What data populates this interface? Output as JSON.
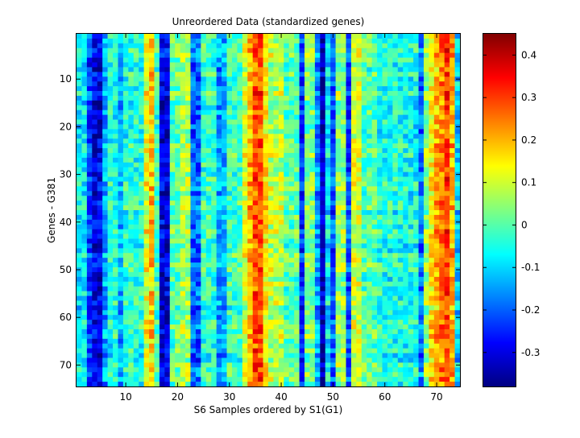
{
  "chart_data": {
    "type": "heatmap",
    "title": "Unreordered Data (standardized genes)",
    "xlabel": "S6 Samples ordered by S1(G1)",
    "ylabel": "Genes - G381",
    "x_range": [
      1,
      74
    ],
    "y_range": [
      1,
      74
    ],
    "y_reversed": true,
    "x_ticks": [
      10,
      20,
      30,
      40,
      50,
      60,
      70
    ],
    "y_ticks": [
      10,
      20,
      30,
      40,
      50,
      60,
      70
    ],
    "colormap": "jet",
    "colorbar": {
      "range": [
        -0.38,
        0.45
      ],
      "ticks": [
        -0.3,
        -0.2,
        -0.1,
        0,
        0.1,
        0.2,
        0.3,
        0.4
      ]
    },
    "column_profile": [
      {
        "cols": [
          1,
          2
        ],
        "value": -0.08
      },
      {
        "cols": [
          3,
          3
        ],
        "value": -0.22
      },
      {
        "cols": [
          4,
          5
        ],
        "value": -0.3
      },
      {
        "cols": [
          6,
          6
        ],
        "value": -0.15
      },
      {
        "cols": [
          7,
          8
        ],
        "value": -0.05
      },
      {
        "cols": [
          9,
          9
        ],
        "value": -0.14
      },
      {
        "cols": [
          10,
          13
        ],
        "value": -0.04
      },
      {
        "cols": [
          14,
          14
        ],
        "value": 0.12
      },
      {
        "cols": [
          15,
          15
        ],
        "value": 0.18
      },
      {
        "cols": [
          16,
          16
        ],
        "value": -0.02
      },
      {
        "cols": [
          17,
          18
        ],
        "value": -0.3
      },
      {
        "cols": [
          19,
          20
        ],
        "value": 0.0
      },
      {
        "cols": [
          21,
          22
        ],
        "value": 0.06
      },
      {
        "cols": [
          23,
          24
        ],
        "value": -0.2
      },
      {
        "cols": [
          25,
          27
        ],
        "value": -0.03
      },
      {
        "cols": [
          28,
          29
        ],
        "value": -0.15
      },
      {
        "cols": [
          30,
          32
        ],
        "value": -0.02
      },
      {
        "cols": [
          33,
          33
        ],
        "value": 0.1
      },
      {
        "cols": [
          34,
          34
        ],
        "value": 0.2
      },
      {
        "cols": [
          35,
          36
        ],
        "value": 0.28
      },
      {
        "cols": [
          37,
          37
        ],
        "value": 0.16
      },
      {
        "cols": [
          38,
          40
        ],
        "value": 0.08
      },
      {
        "cols": [
          41,
          43
        ],
        "value": 0.0
      },
      {
        "cols": [
          44,
          44
        ],
        "value": -0.24
      },
      {
        "cols": [
          45,
          46
        ],
        "value": 0.03
      },
      {
        "cols": [
          47,
          47
        ],
        "value": -0.15
      },
      {
        "cols": [
          48,
          48
        ],
        "value": -0.33
      },
      {
        "cols": [
          49,
          49
        ],
        "value": -0.08
      },
      {
        "cols": [
          50,
          50
        ],
        "value": -0.22
      },
      {
        "cols": [
          51,
          52
        ],
        "value": 0.05
      },
      {
        "cols": [
          53,
          53
        ],
        "value": -0.22
      },
      {
        "cols": [
          54,
          55
        ],
        "value": 0.1
      },
      {
        "cols": [
          56,
          58
        ],
        "value": 0.0
      },
      {
        "cols": [
          59,
          63
        ],
        "value": -0.05
      },
      {
        "cols": [
          64,
          66
        ],
        "value": -0.06
      },
      {
        "cols": [
          67,
          67
        ],
        "value": -0.18
      },
      {
        "cols": [
          68,
          68
        ],
        "value": 0.05
      },
      {
        "cols": [
          69,
          69
        ],
        "value": 0.15
      },
      {
        "cols": [
          70,
          70
        ],
        "value": 0.2
      },
      {
        "cols": [
          71,
          71
        ],
        "value": 0.25
      },
      {
        "cols": [
          72,
          72
        ],
        "value": 0.3
      },
      {
        "cols": [
          73,
          73
        ],
        "value": 0.2
      },
      {
        "cols": [
          74,
          74
        ],
        "value": -0.1
      }
    ]
  }
}
